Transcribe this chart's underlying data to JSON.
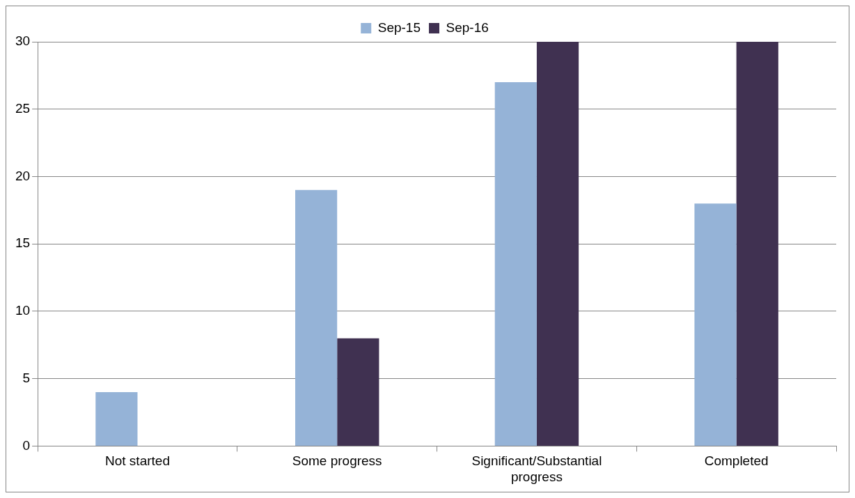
{
  "chart_data": {
    "type": "bar",
    "categories": [
      "Not started",
      "Some progress",
      "Significant/Substantial progress",
      "Completed"
    ],
    "series": [
      {
        "name": "Sep-15",
        "color": "#95b3d7",
        "values": [
          4,
          19,
          27,
          18
        ]
      },
      {
        "name": "Sep-16",
        "color": "#403151",
        "values": [
          0,
          8,
          30,
          30
        ]
      }
    ],
    "ylim": [
      0,
      30
    ],
    "yticks": [
      0,
      5,
      10,
      15,
      20,
      25,
      30
    ],
    "grid": "y",
    "legend": "top"
  }
}
